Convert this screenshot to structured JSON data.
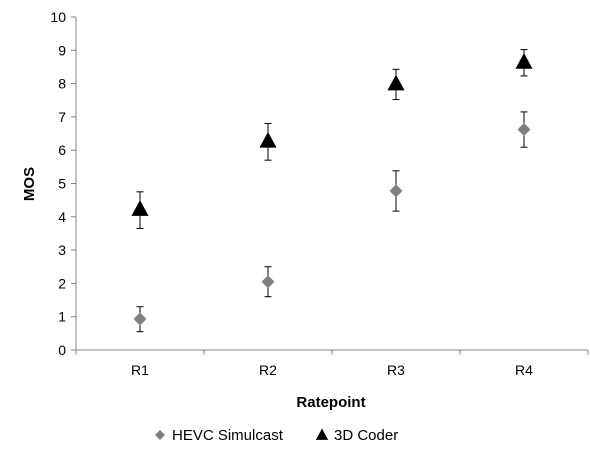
{
  "chart_data": {
    "type": "scatter",
    "title": "",
    "xlabel": "Ratepoint",
    "ylabel": "MOS",
    "categories": [
      "R1",
      "R2",
      "R3",
      "R4"
    ],
    "ylim": [
      0,
      10
    ],
    "yticks": [
      "0",
      "1",
      "2",
      "3",
      "4",
      "5",
      "6",
      "7",
      "8",
      "9",
      "10"
    ],
    "grid": false,
    "legend_position": "bottom",
    "series": [
      {
        "name": "HEVC Simulcast",
        "marker": "diamond",
        "color": "#7f7f7f",
        "values": [
          0.93,
          2.05,
          4.78,
          6.62
        ],
        "error_low": [
          0.55,
          1.6,
          4.17,
          6.09
        ],
        "error_high": [
          1.3,
          2.5,
          5.38,
          7.15
        ]
      },
      {
        "name": "3D Coder",
        "marker": "triangle",
        "color": "#000000",
        "values": [
          4.2,
          6.25,
          7.97,
          8.62
        ],
        "error_low": [
          3.65,
          5.7,
          7.52,
          8.23
        ],
        "error_high": [
          4.75,
          6.8,
          8.43,
          9.02
        ]
      }
    ]
  }
}
